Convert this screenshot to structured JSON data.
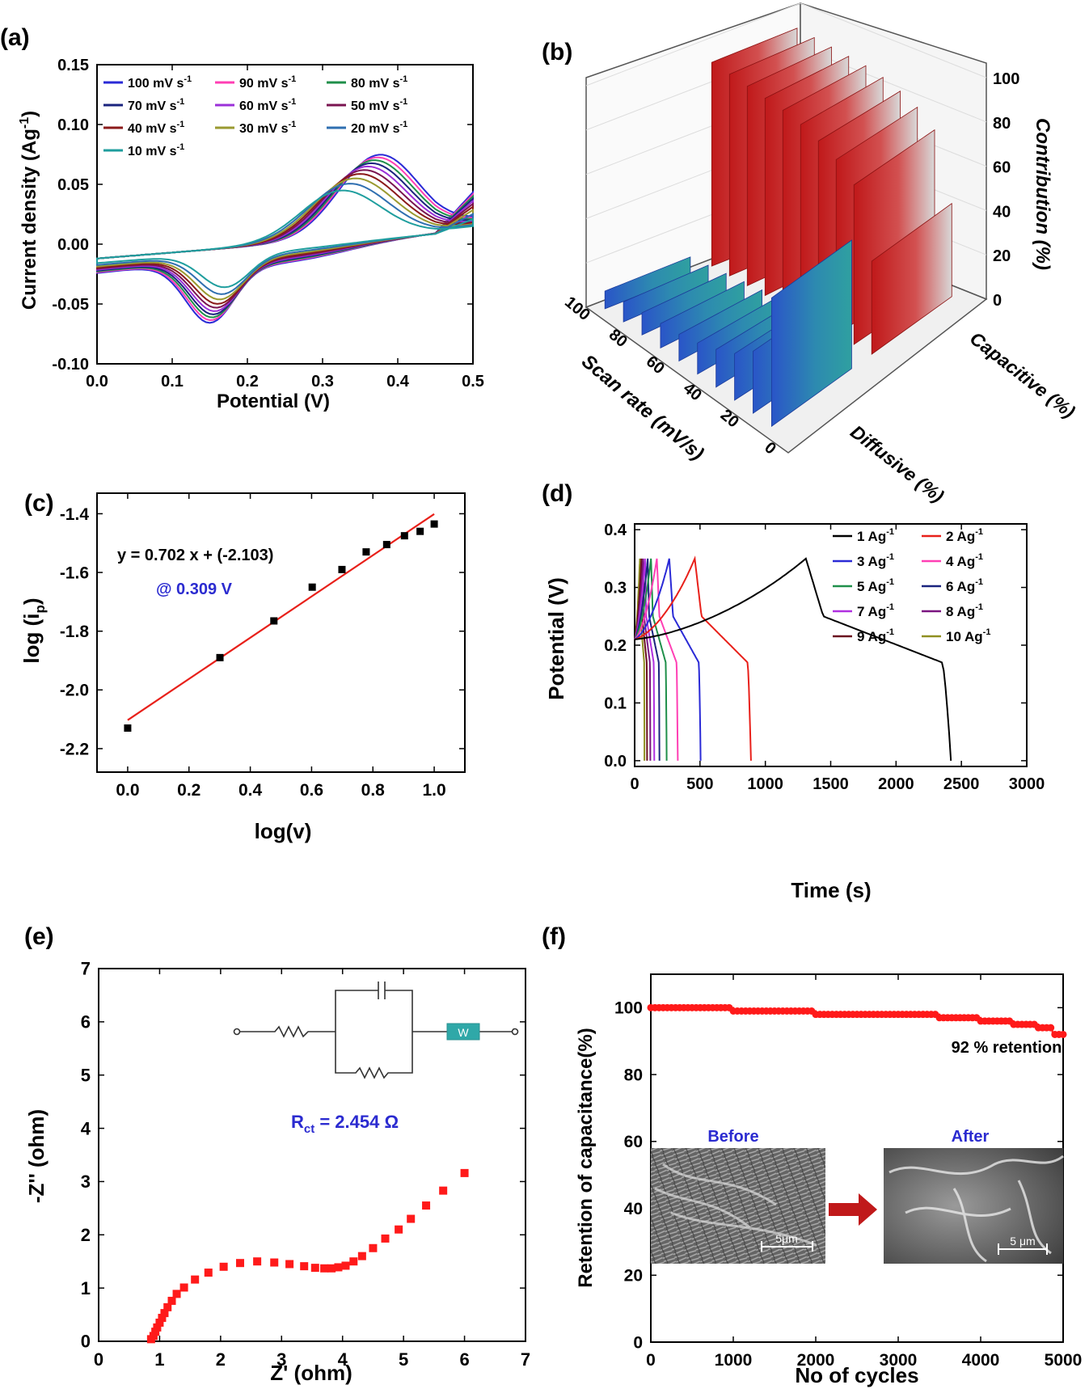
{
  "chart_data": [
    {
      "panel": "(a)",
      "type": "line",
      "xlabel": "Potential (V)",
      "ylabel": "Current density (Ag",
      "ylabel_sup": "-1",
      "ylabel_end": ")",
      "xlim": [
        0.0,
        0.5
      ],
      "ylim": [
        -0.1,
        0.15
      ],
      "xticks": [
        "0.0",
        "0.1",
        "0.2",
        "0.3",
        "0.4",
        "0.5"
      ],
      "xtick_values": [
        0.0,
        0.1,
        0.2,
        0.3,
        0.4,
        0.5
      ],
      "yticks": [
        "-0.10",
        "-0.05",
        "0.00",
        "0.05",
        "0.10",
        "0.15"
      ],
      "ytick_values": [
        -0.1,
        -0.05,
        0.0,
        0.05,
        0.1,
        0.15
      ],
      "legend": "top-left",
      "series": [
        {
          "name": "100 mV s",
          "sup": "-1",
          "scan_rate": 100,
          "color": "#2a2ad6"
        },
        {
          "name": "90 mV s",
          "sup": "-1",
          "scan_rate": 90,
          "color": "#ff3fb4"
        },
        {
          "name": "80 mV s",
          "sup": "-1",
          "scan_rate": 80,
          "color": "#1f8f4a"
        },
        {
          "name": "70 mV s",
          "sup": "-1",
          "scan_rate": 70,
          "color": "#1a237e"
        },
        {
          "name": "60 mV s",
          "sup": "-1",
          "scan_rate": 60,
          "color": "#9b30d8"
        },
        {
          "name": "50 mV s",
          "sup": "-1",
          "scan_rate": 50,
          "color": "#7a1450"
        },
        {
          "name": "40 mV s",
          "sup": "-1",
          "scan_rate": 40,
          "color": "#8b1a1a"
        },
        {
          "name": "30 mV s",
          "sup": "-1",
          "scan_rate": 30,
          "color": "#9a9a30"
        },
        {
          "name": "20 mV s",
          "sup": "-1",
          "scan_rate": 20,
          "color": "#2f6fb0"
        },
        {
          "name": "10 mV s",
          "sup": "-1",
          "scan_rate": 10,
          "color": "#1f9e9e"
        }
      ]
    },
    {
      "panel": "(b)",
      "type": "bar",
      "zlabel": "Contribution (%)",
      "xlabel": "Scan rate (mV/s)",
      "categories": [
        "Diffusive (%)",
        "Capacitive (%)"
      ],
      "scan_rates": [
        10,
        20,
        30,
        40,
        50,
        60,
        70,
        80,
        90,
        100
      ],
      "capacitive": [
        42,
        72,
        79,
        83,
        86,
        88,
        89,
        90,
        91,
        92
      ],
      "diffusive": [
        58,
        28,
        21,
        17,
        14,
        12,
        11,
        10,
        9,
        8
      ],
      "zticks": [
        "0",
        "20",
        "40",
        "60",
        "80",
        "100"
      ],
      "xticks": [
        "0",
        "20",
        "40",
        "60",
        "80",
        "100"
      ]
    },
    {
      "panel": "(c)",
      "type": "scatter",
      "xlabel": "log(v)",
      "ylabel": "log (i",
      "ylabel_sub": "p",
      "ylabel_end": ")",
      "xlim": [
        -0.1,
        1.1
      ],
      "ylim": [
        -2.28,
        -1.33
      ],
      "xticks": [
        "0.0",
        "0.2",
        "0.4",
        "0.6",
        "0.8",
        "1.0"
      ],
      "xtick_values": [
        0.0,
        0.2,
        0.4,
        0.6,
        0.8,
        1.0
      ],
      "yticks": [
        "-2.2",
        "-2.0",
        "-1.8",
        "-1.6",
        "-1.4"
      ],
      "ytick_values": [
        -2.2,
        -2.0,
        -1.8,
        -1.6,
        -1.4
      ],
      "x": [
        0.0,
        0.301,
        0.477,
        0.602,
        0.699,
        0.778,
        0.845,
        0.903,
        0.954,
        1.0
      ],
      "y": [
        -2.13,
        -1.89,
        -1.765,
        -1.65,
        -1.59,
        -1.53,
        -1.505,
        -1.475,
        -1.46,
        -1.435
      ],
      "fit": {
        "slope": 0.702,
        "intercept": -2.103,
        "color": "#e8201a"
      },
      "annotations": [
        "y = 0.702 x + (-2.103)",
        "@ 0.309 V"
      ]
    },
    {
      "panel": "(d)",
      "type": "line",
      "xlabel": "Time (s)",
      "ylabel": "Potential (V)",
      "xlim": [
        0,
        3000
      ],
      "ylim": [
        -0.01,
        0.41
      ],
      "xticks": [
        "0",
        "500",
        "1000",
        "1500",
        "2000",
        "2500",
        "3000"
      ],
      "xtick_values": [
        0,
        500,
        1000,
        1500,
        2000,
        2500,
        3000
      ],
      "yticks": [
        "0.0",
        "0.1",
        "0.2",
        "0.3",
        "0.4"
      ],
      "ytick_values": [
        0.0,
        0.1,
        0.2,
        0.3,
        0.4
      ],
      "legend": "top-right",
      "series": [
        {
          "name": "1 Ag",
          "sup": "-1",
          "color": "#000000",
          "charge_end": 1310,
          "discharge_end": 2420
        },
        {
          "name": "2 Ag",
          "sup": "-1",
          "color": "#e8201a",
          "charge_end": 460,
          "discharge_end": 890
        },
        {
          "name": "3 Ag",
          "sup": "-1",
          "color": "#2a2ad6",
          "charge_end": 265,
          "discharge_end": 505
        },
        {
          "name": "4 Ag",
          "sup": "-1",
          "color": "#ff3fb4",
          "charge_end": 170,
          "discharge_end": 330
        },
        {
          "name": "5 Ag",
          "sup": "-1",
          "color": "#1f8f4a",
          "charge_end": 125,
          "discharge_end": 245
        },
        {
          "name": "6 Ag",
          "sup": "-1",
          "color": "#1a237e",
          "charge_end": 100,
          "discharge_end": 190
        },
        {
          "name": "7 Ag",
          "sup": "-1",
          "color": "#b030e0",
          "charge_end": 80,
          "discharge_end": 150
        },
        {
          "name": "8 Ag",
          "sup": "-1",
          "color": "#7a1480",
          "charge_end": 65,
          "discharge_end": 120
        },
        {
          "name": "9 Ag",
          "sup": "-1",
          "color": "#6a0f1f",
          "charge_end": 52,
          "discharge_end": 95
        },
        {
          "name": "10 Ag",
          "sup": "-1",
          "color": "#8f8f20",
          "charge_end": 40,
          "discharge_end": 75
        }
      ]
    },
    {
      "panel": "(e)",
      "type": "scatter",
      "xlabel": "Z' (ohm)",
      "ylabel": "-Z'' (ohm)",
      "xlim": [
        0,
        7
      ],
      "ylim": [
        0,
        7
      ],
      "xticks": [
        "0",
        "1",
        "2",
        "3",
        "4",
        "5",
        "6",
        "7"
      ],
      "xtick_values": [
        0,
        1,
        2,
        3,
        4,
        5,
        6,
        7
      ],
      "yticks": [
        "0",
        "1",
        "2",
        "3",
        "4",
        "5",
        "6",
        "7"
      ],
      "ytick_values": [
        0,
        1,
        2,
        3,
        4,
        5,
        6,
        7
      ],
      "x": [
        0.86,
        0.9,
        0.93,
        0.96,
        1.0,
        1.04,
        1.08,
        1.13,
        1.2,
        1.28,
        1.4,
        1.58,
        1.8,
        2.05,
        2.32,
        2.6,
        2.88,
        3.13,
        3.37,
        3.55,
        3.7,
        3.82,
        3.93,
        4.05,
        4.18,
        4.32,
        4.5,
        4.7,
        4.92,
        5.12,
        5.37,
        5.65,
        6.0
      ],
      "y": [
        0.04,
        0.1,
        0.18,
        0.26,
        0.35,
        0.44,
        0.53,
        0.64,
        0.76,
        0.89,
        1.01,
        1.16,
        1.29,
        1.4,
        1.47,
        1.5,
        1.48,
        1.45,
        1.41,
        1.38,
        1.37,
        1.37,
        1.39,
        1.42,
        1.5,
        1.6,
        1.75,
        1.93,
        2.1,
        2.3,
        2.55,
        2.83,
        3.16
      ],
      "color": "#ff1a1a",
      "annotation": {
        "label": "R",
        "sub": "ct",
        "value": " = 2.454 Ω"
      },
      "circuit_element": "W"
    },
    {
      "panel": "(f)",
      "type": "line",
      "xlabel": "No of cycles",
      "ylabel": "Retention of capacitance(%)",
      "xlim": [
        0,
        5000
      ],
      "ylim": [
        0,
        110
      ],
      "xticks": [
        "0",
        "1000",
        "2000",
        "3000",
        "4000",
        "5000"
      ],
      "xtick_values": [
        0,
        1000,
        2000,
        3000,
        4000,
        5000
      ],
      "yticks": [
        "0",
        "20",
        "40",
        "60",
        "80",
        "100"
      ],
      "ytick_values": [
        0,
        20,
        40,
        60,
        80,
        100
      ],
      "x": [
        0,
        1000,
        1000,
        2000,
        2000,
        3500,
        3500,
        4000,
        4000,
        4400,
        4400,
        4700,
        4700,
        4870,
        4870,
        5000
      ],
      "y": [
        100,
        100,
        99,
        99,
        98,
        98,
        97,
        97,
        96,
        96,
        95,
        95,
        94,
        94,
        92,
        92
      ],
      "color": "#ff1a1a",
      "annotations": [
        "92 % retention",
        "Before",
        "After"
      ],
      "scale_bars": [
        "5μm",
        "5 μm"
      ]
    }
  ]
}
